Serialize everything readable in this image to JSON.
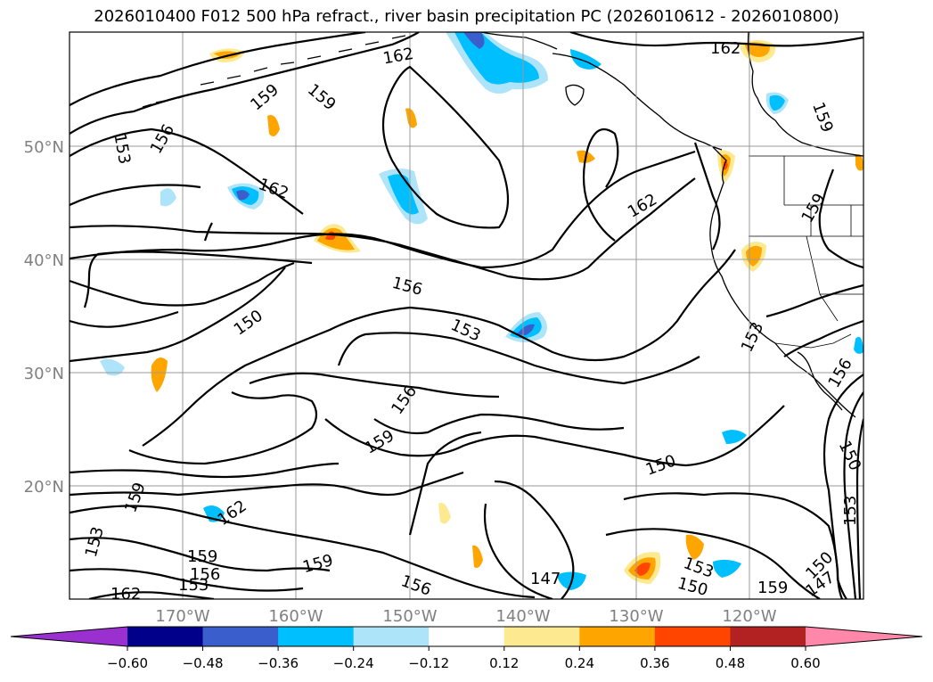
{
  "title": "2026010400 F012 500 hPa refract., river basin precipitation PC (2026010612 - 2026010800)",
  "lat_labels": [
    "50°N",
    "40°N",
    "30°N",
    "20°N"
  ],
  "lon_labels": [
    "170°W",
    "160°W",
    "150°W",
    "140°W",
    "130°W",
    "120°W"
  ],
  "contour_labels": [
    "162",
    "159",
    "159",
    "156",
    "153",
    "162",
    "162",
    "159",
    "156",
    "150",
    "153",
    "156",
    "159",
    "150",
    "147",
    "153",
    "159",
    "162",
    "153",
    "159",
    "156",
    "153",
    "162",
    "159",
    "156",
    "153",
    "150",
    "147",
    "159",
    "150",
    "153",
    "150",
    "159",
    "156",
    "162"
  ],
  "colorbar": {
    "ticks": [
      "−0.60",
      "−0.48",
      "−0.36",
      "−0.24",
      "−0.12",
      "0.12",
      "0.24",
      "0.36",
      "0.48",
      "0.60"
    ],
    "colors": [
      "#9b30d0",
      "#00008b",
      "#3a5fcd",
      "#00bfff",
      "#ade4fa",
      "#ffffff",
      "#fde98f",
      "#ffa500",
      "#ff4500",
      "#b22222",
      "#ff88aa"
    ]
  }
}
